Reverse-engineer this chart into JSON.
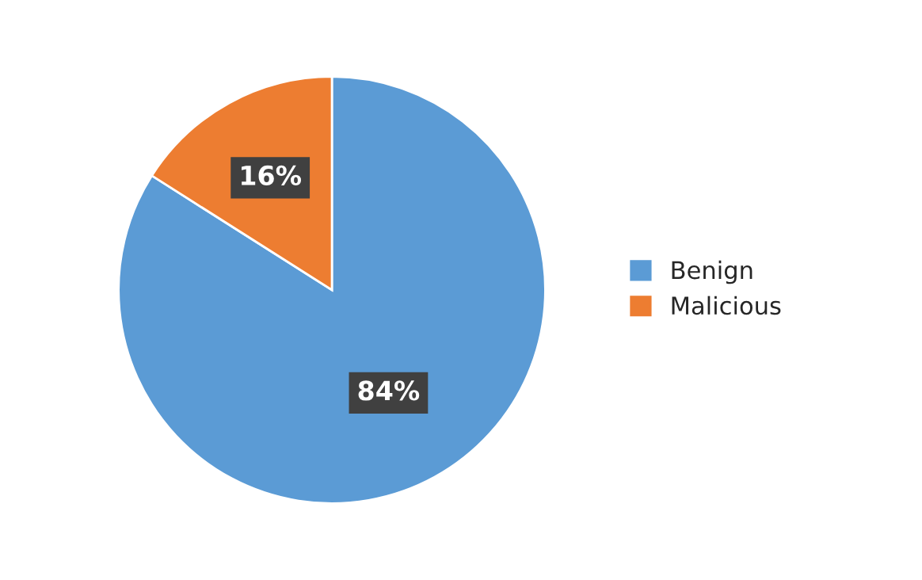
{
  "chart_data": {
    "type": "pie",
    "categories": [
      "Benign",
      "Malicious"
    ],
    "values": [
      84,
      16
    ],
    "colors": [
      "#5b9bd5",
      "#ed7d31"
    ],
    "value_labels": [
      "84%",
      "16%"
    ],
    "legend": "right"
  }
}
